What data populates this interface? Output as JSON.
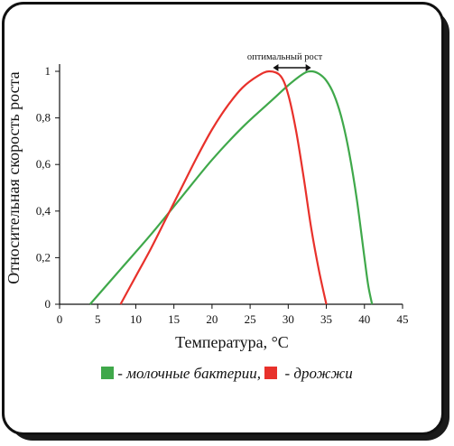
{
  "chart_data": {
    "type": "line",
    "title": "",
    "xlabel": "Температура, °С",
    "ylabel": "Относительная скорость роста",
    "xlim": [
      0,
      45
    ],
    "ylim": [
      0,
      1
    ],
    "x_ticks": [
      "0",
      "5",
      "10",
      "15",
      "20",
      "25",
      "30",
      "35",
      "40",
      "45"
    ],
    "y_ticks": [
      "0",
      "0,2",
      "0,4",
      "0,6",
      "0,8",
      "1"
    ],
    "grid": false,
    "annotation": "оптимальный рост",
    "annotation_range": [
      28,
      33
    ],
    "series": [
      {
        "name": "молочные бактерии",
        "color": "#3fa84a",
        "points": [
          [
            4,
            0
          ],
          [
            8,
            0.15
          ],
          [
            12,
            0.3
          ],
          [
            16,
            0.46
          ],
          [
            20,
            0.62
          ],
          [
            24,
            0.76
          ],
          [
            28,
            0.88
          ],
          [
            30,
            0.94
          ],
          [
            32,
            0.99
          ],
          [
            33,
            1.0
          ],
          [
            34,
            0.99
          ],
          [
            35,
            0.96
          ],
          [
            36,
            0.9
          ],
          [
            37,
            0.8
          ],
          [
            38,
            0.65
          ],
          [
            39,
            0.45
          ],
          [
            40,
            0.2
          ],
          [
            40.5,
            0.08
          ],
          [
            41,
            0
          ]
        ]
      },
      {
        "name": "дрожжи",
        "color": "#e8312b",
        "points": [
          [
            8,
            0
          ],
          [
            10,
            0.12
          ],
          [
            12,
            0.24
          ],
          [
            14,
            0.37
          ],
          [
            16,
            0.5
          ],
          [
            18,
            0.63
          ],
          [
            20,
            0.75
          ],
          [
            22,
            0.85
          ],
          [
            24,
            0.93
          ],
          [
            26,
            0.98
          ],
          [
            27.5,
            1.0
          ],
          [
            29,
            0.98
          ],
          [
            30,
            0.9
          ],
          [
            31,
            0.75
          ],
          [
            32,
            0.55
          ],
          [
            33,
            0.33
          ],
          [
            34,
            0.15
          ],
          [
            35,
            0
          ]
        ]
      }
    ],
    "legend": {
      "position": "bottom",
      "items": [
        {
          "label": "- молочные бактерии,",
          "color": "#3fa84a"
        },
        {
          "label": " - дрожжи",
          "color": "#e8312b"
        }
      ]
    }
  }
}
